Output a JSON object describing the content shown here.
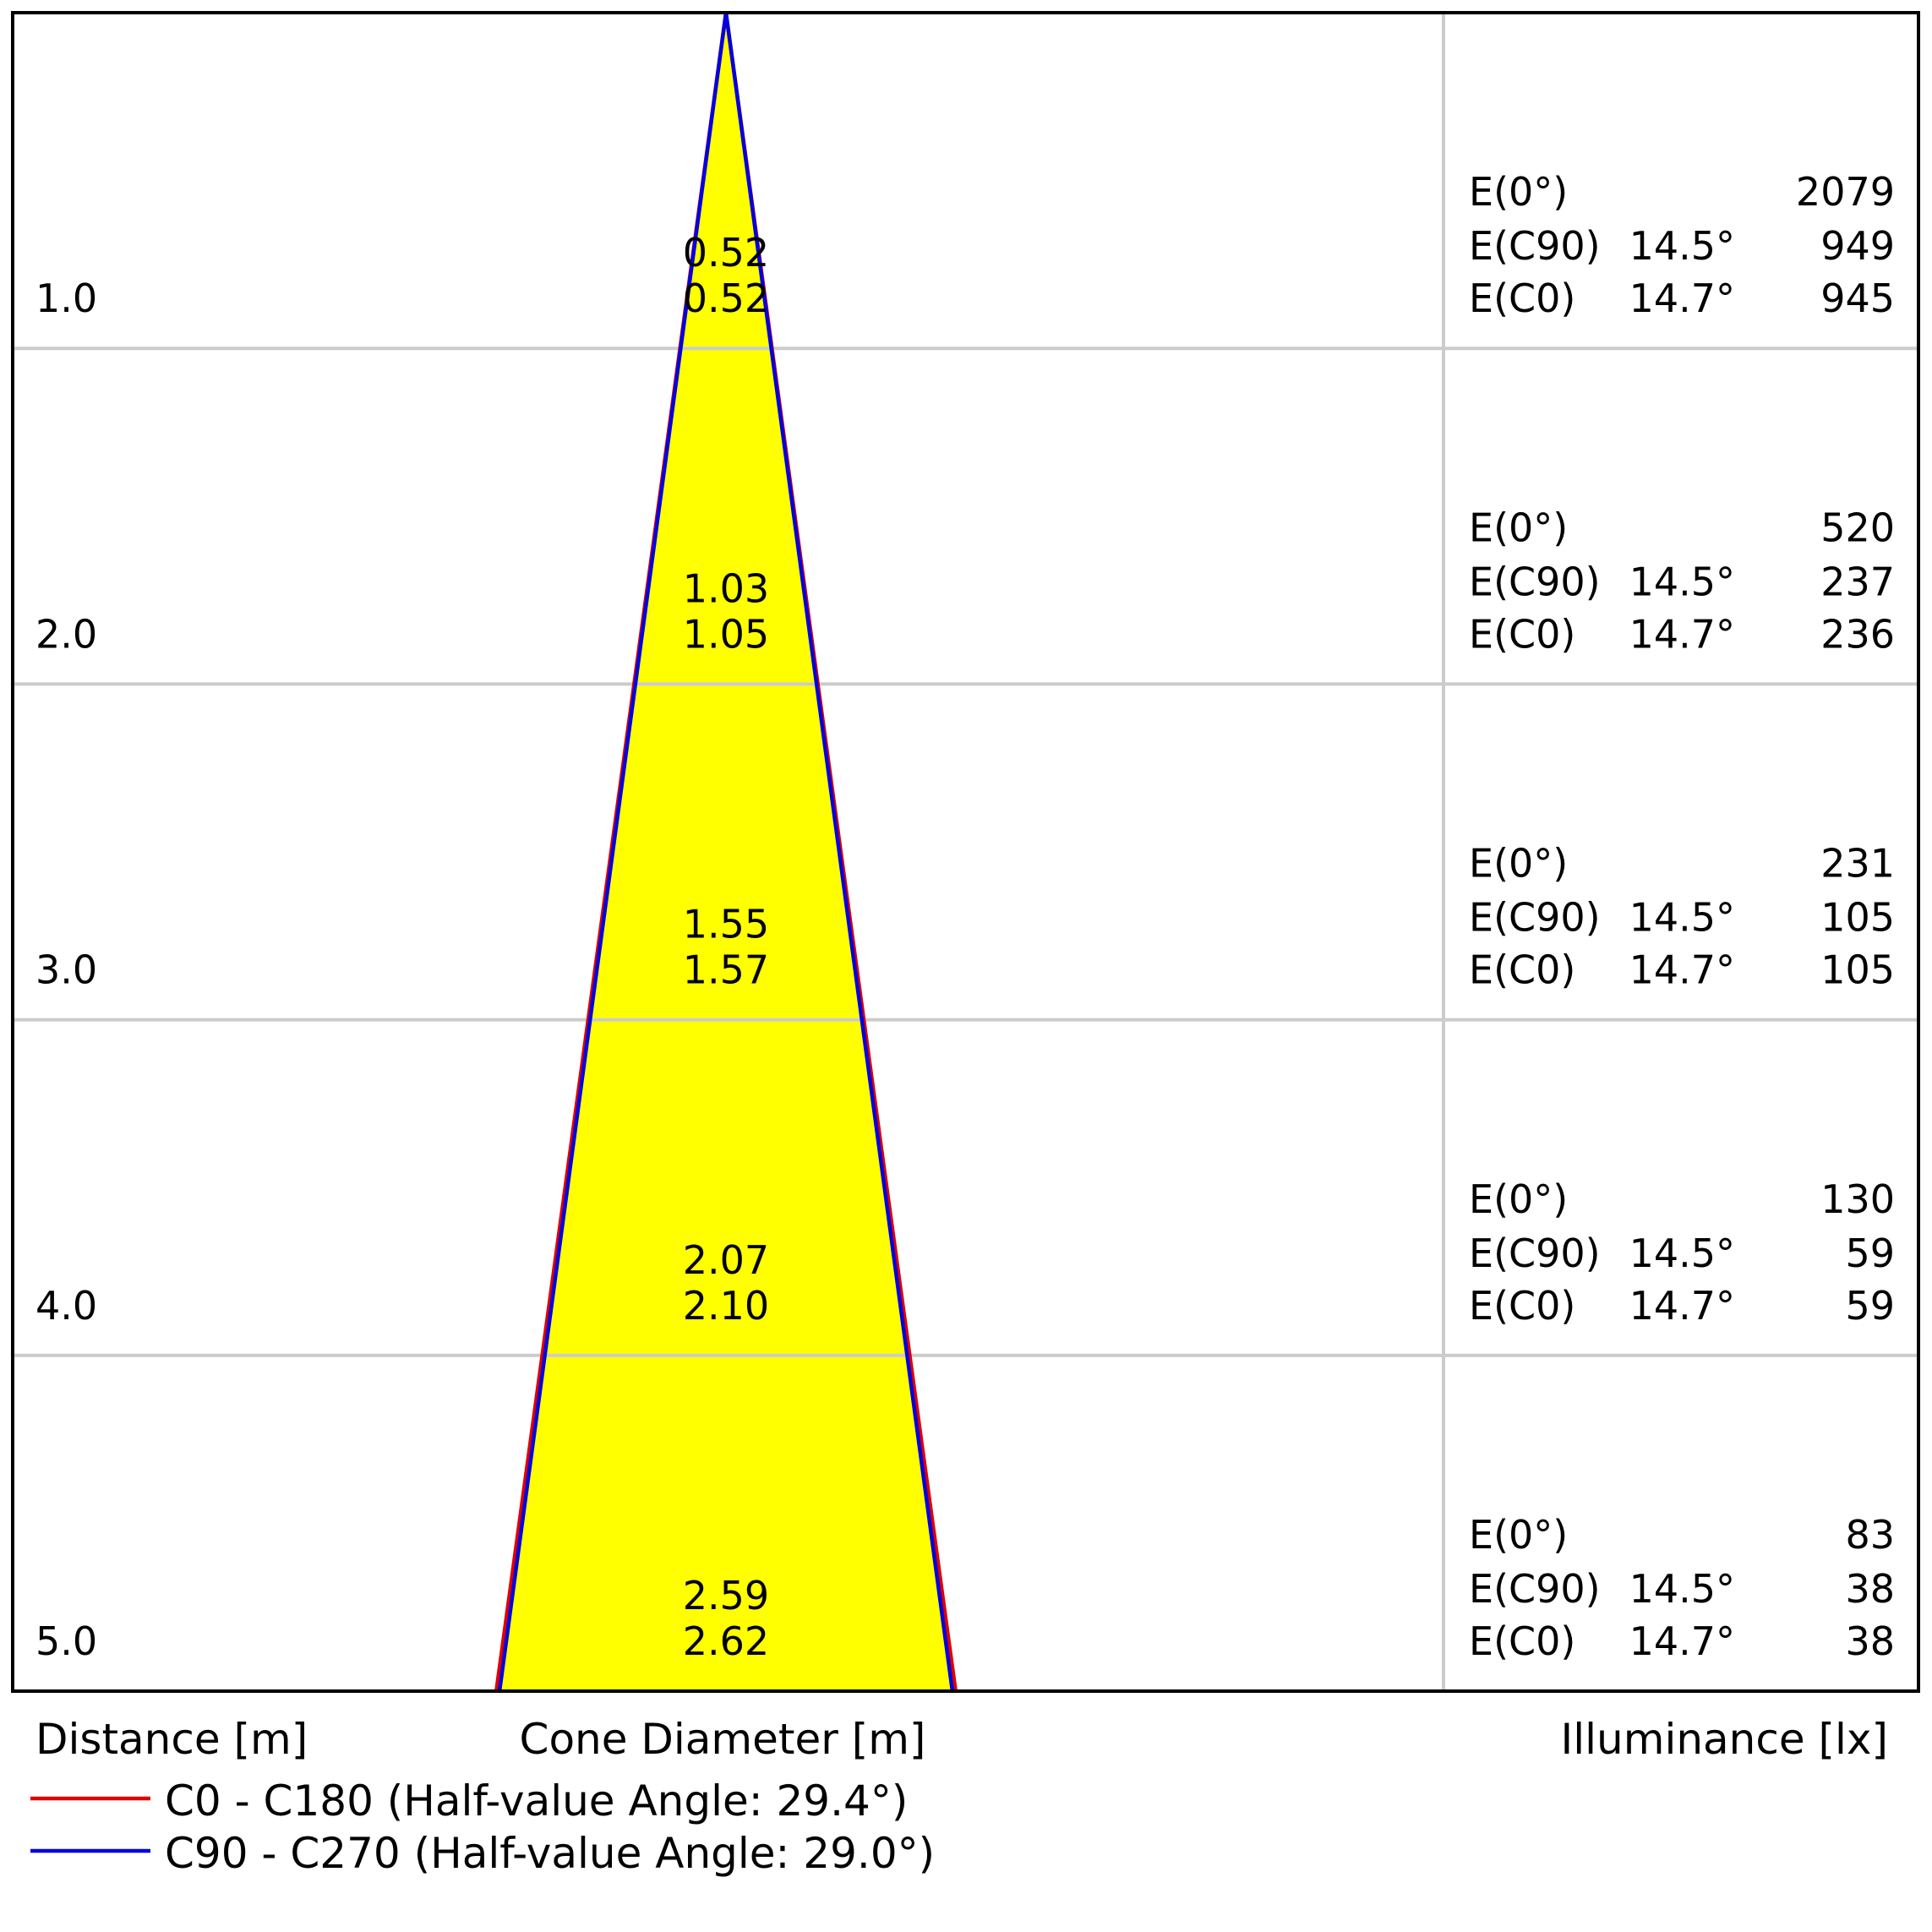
{
  "chart_data": {
    "type": "cone-diagram",
    "x_label": "Distance [m]",
    "middle_label": "Cone Diameter [m]",
    "right_label": "Illuminance [lx]",
    "legend": [
      {
        "line": "C0 - C180",
        "text": "C0 - C180 (Half-value Angle: 29.4°)",
        "half_angle_deg": 29.4,
        "color": "#e00000"
      },
      {
        "line": "C90 - C270",
        "text": "C90 - C270 (Half-value Angle: 29.0°)",
        "half_angle_deg": 29.0,
        "color": "#0000e0"
      }
    ],
    "max_distance": 5.0,
    "fill_color": "#ffff00",
    "rows": [
      {
        "distance": "1.0",
        "d_c90": "0.52",
        "d_c0": "0.52",
        "e0_label": "E(0°)",
        "e0": "2079",
        "ec90_label": "E(C90)",
        "ec90_angle": "14.5°",
        "ec90": "949",
        "ec0_label": "E(C0)",
        "ec0_angle": "14.7°",
        "ec0": "945"
      },
      {
        "distance": "2.0",
        "d_c90": "1.03",
        "d_c0": "1.05",
        "e0_label": "E(0°)",
        "e0": "520",
        "ec90_label": "E(C90)",
        "ec90_angle": "14.5°",
        "ec90": "237",
        "ec0_label": "E(C0)",
        "ec0_angle": "14.7°",
        "ec0": "236"
      },
      {
        "distance": "3.0",
        "d_c90": "1.55",
        "d_c0": "1.57",
        "e0_label": "E(0°)",
        "e0": "231",
        "ec90_label": "E(C90)",
        "ec90_angle": "14.5°",
        "ec90": "105",
        "ec0_label": "E(C0)",
        "ec0_angle": "14.7°",
        "ec0": "105"
      },
      {
        "distance": "4.0",
        "d_c90": "2.07",
        "d_c0": "2.10",
        "e0_label": "E(0°)",
        "e0": "130",
        "ec90_label": "E(C90)",
        "ec90_angle": "14.5°",
        "ec90": "59",
        "ec0_label": "E(C0)",
        "ec0_angle": "14.7°",
        "ec0": "59"
      },
      {
        "distance": "5.0",
        "d_c90": "2.59",
        "d_c0": "2.62",
        "e0_label": "E(0°)",
        "e0": "83",
        "ec90_label": "E(C90)",
        "ec90_angle": "14.5°",
        "ec90": "38",
        "ec0_label": "E(C0)",
        "ec0_angle": "14.7°",
        "ec0": "38"
      }
    ]
  }
}
